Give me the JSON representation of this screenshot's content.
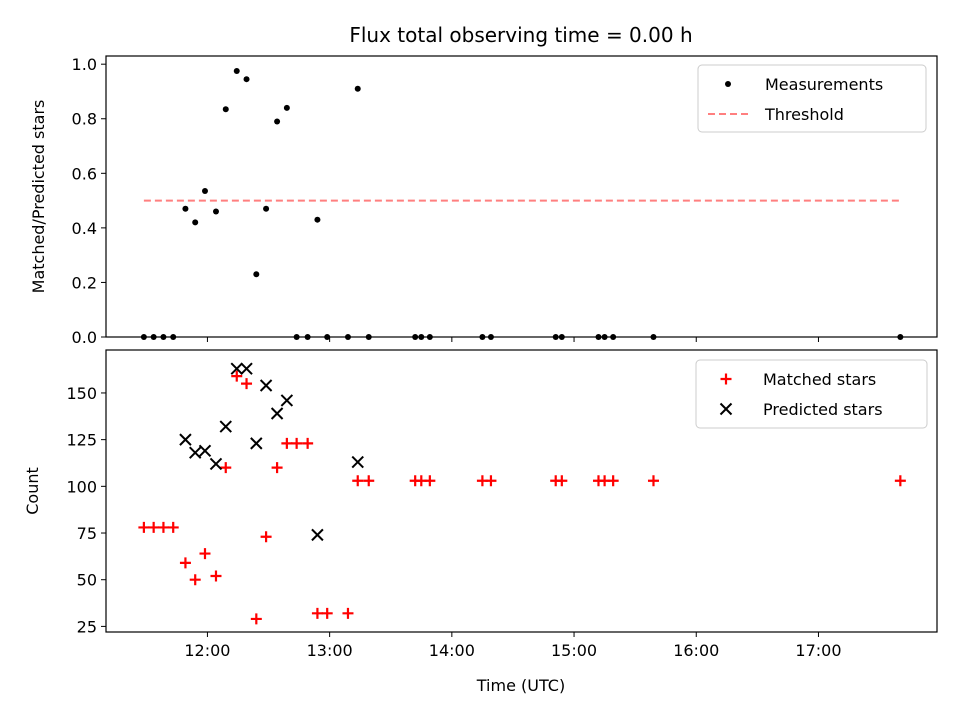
{
  "figure": {
    "title": "Flux total observing time = 0.00 h",
    "xlabel": "Time (UTC)",
    "x_tick_labels": [
      "12:00",
      "13:00",
      "14:00",
      "15:00",
      "16:00",
      "17:00"
    ]
  },
  "colors": {
    "measurements": "#000000",
    "threshold": "#ff7f7f",
    "matched": "#ff0000",
    "predicted": "#000000"
  },
  "chart_data": [
    {
      "type": "scatter",
      "title": "Flux total observing time = 0.00 h",
      "ylabel": "Matched/Predicted stars",
      "xlabel": "",
      "x_unit": "hours UTC",
      "xlim": [
        11.17,
        17.97
      ],
      "ylim": [
        0,
        1.03
      ],
      "y_ticks": [
        0.0,
        0.2,
        0.4,
        0.6,
        0.8,
        1.0
      ],
      "legend_position": "top-right",
      "series": [
        {
          "name": "Measurements",
          "marker": "dot",
          "x": [
            11.48,
            11.56,
            11.64,
            11.72,
            11.82,
            11.9,
            11.98,
            12.07,
            12.15,
            12.24,
            12.32,
            12.4,
            12.48,
            12.57,
            12.65,
            12.73,
            12.82,
            12.9,
            12.98,
            13.15,
            13.23,
            13.32,
            13.7,
            13.75,
            13.82,
            14.25,
            14.32,
            14.85,
            14.9,
            15.2,
            15.25,
            15.32,
            15.65,
            17.67
          ],
          "y": [
            0,
            0,
            0,
            0,
            0.47,
            0.42,
            0.535,
            0.46,
            0.835,
            0.975,
            0.945,
            0.23,
            0.47,
            0.79,
            0.84,
            0,
            0,
            0.43,
            0,
            0,
            0.91,
            0,
            0,
            0,
            0,
            0,
            0,
            0,
            0,
            0,
            0,
            0,
            0,
            0
          ]
        },
        {
          "name": "Threshold",
          "marker": "dashed-line",
          "x": [
            11.48,
            17.67
          ],
          "y": [
            0.5,
            0.5
          ]
        }
      ]
    },
    {
      "type": "scatter",
      "ylabel": "Count",
      "xlabel": "Time (UTC)",
      "x_unit": "hours UTC",
      "xlim": [
        11.17,
        17.97
      ],
      "ylim": [
        22,
        173
      ],
      "y_ticks": [
        25,
        50,
        75,
        100,
        125,
        150
      ],
      "legend_position": "top-right",
      "series": [
        {
          "name": "Matched stars",
          "marker": "plus",
          "x": [
            11.48,
            11.56,
            11.64,
            11.72,
            11.82,
            11.9,
            11.98,
            12.07,
            12.15,
            12.24,
            12.32,
            12.4,
            12.48,
            12.57,
            12.65,
            12.73,
            12.82,
            12.9,
            12.98,
            13.15,
            13.23,
            13.32,
            13.7,
            13.75,
            13.82,
            14.25,
            14.32,
            14.85,
            14.9,
            15.2,
            15.25,
            15.32,
            15.65,
            17.67
          ],
          "y": [
            78,
            78,
            78,
            78,
            59,
            50,
            64,
            52,
            110,
            159,
            155,
            29,
            73,
            110,
            123,
            123,
            123,
            32,
            32,
            32,
            103,
            103,
            103,
            103,
            103,
            103,
            103,
            103,
            103,
            103,
            103,
            103,
            103,
            103
          ]
        },
        {
          "name": "Predicted stars",
          "marker": "x",
          "x": [
            11.82,
            11.9,
            11.98,
            12.07,
            12.15,
            12.24,
            12.32,
            12.4,
            12.48,
            12.57,
            12.65,
            12.9,
            13.23
          ],
          "y": [
            125,
            118,
            119,
            112,
            132,
            163,
            163,
            123,
            154,
            139,
            146,
            74,
            113
          ]
        }
      ]
    }
  ]
}
